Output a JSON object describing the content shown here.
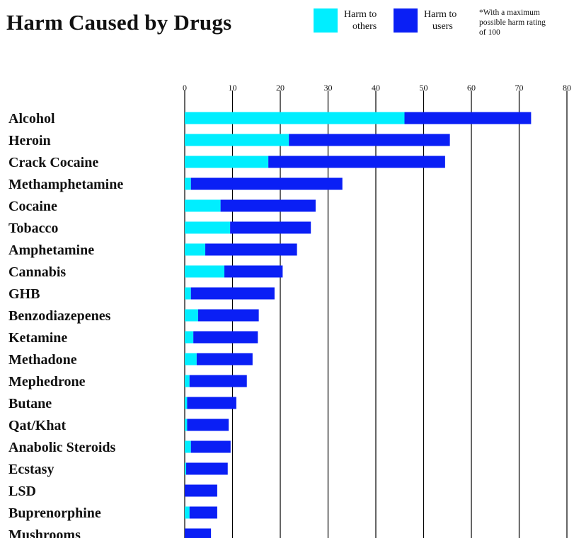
{
  "title": "Harm Caused by Drugs",
  "legend": [
    {
      "label_line1": "Harm to",
      "label_line2": "others",
      "color": "#00EEFF"
    },
    {
      "label_line1": "Harm to",
      "label_line2": "users",
      "color": "#0A1FF5"
    }
  ],
  "footnote": {
    "line1": "*With a maximum",
    "line2": "possible harm rating",
    "line3": "of 100"
  },
  "chart_data": {
    "type": "bar",
    "orientation": "horizontal",
    "stacked": true,
    "title": "Harm Caused by Drugs",
    "xlim": [
      0,
      80
    ],
    "xticks": [
      0,
      10,
      20,
      30,
      40,
      50,
      60,
      70,
      80
    ],
    "grid": true,
    "legend_position": "top-right",
    "categories": [
      "Alcohol",
      "Heroin",
      "Crack Cocaine",
      "Methamphetamine",
      "Cocaine",
      "Tobacco",
      "Amphetamine",
      "Cannabis",
      "GHB",
      "Benzodiazepenes",
      "Ketamine",
      "Methadone",
      "Mephedrone",
      "Butane",
      "Qat/Khat",
      "Anabolic Steroids",
      "Ecstasy",
      "LSD",
      "Buprenorphine",
      "Mushrooms"
    ],
    "series": [
      {
        "name": "Harm to others",
        "color": "#00EEFF",
        "values": [
          46,
          21.8,
          17.5,
          1.3,
          7.5,
          9.5,
          4.3,
          8.3,
          1.3,
          2.8,
          1.8,
          2.5,
          1.0,
          0.5,
          0.5,
          1.3,
          0.3,
          0.0,
          1.0,
          0.0
        ]
      },
      {
        "name": "Harm to users",
        "color": "#0A1FF5",
        "values": [
          26.5,
          33.7,
          37,
          31.7,
          19.9,
          16.9,
          19.2,
          12.2,
          17.5,
          12.7,
          13.5,
          11.7,
          12.0,
          10.3,
          8.7,
          8.3,
          8.7,
          6.8,
          5.8,
          5.5
        ]
      }
    ]
  }
}
